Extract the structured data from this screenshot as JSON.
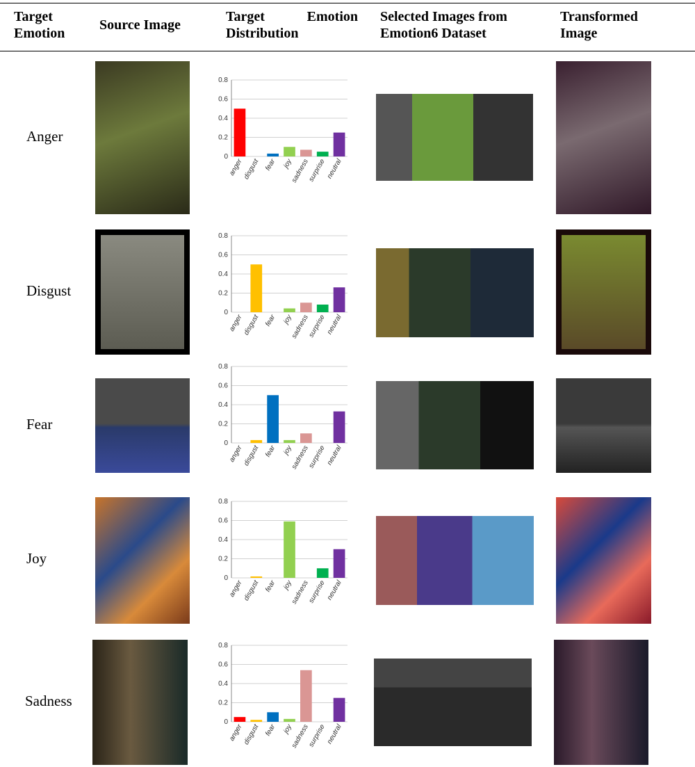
{
  "table": {
    "headers": [
      "Target Emotion",
      "Source Image",
      "Target Emotion Distribution",
      "Selected Images from Emotion6 Dataset",
      "Transformed Image"
    ],
    "rows": [
      "Anger",
      "Disgust",
      "Fear",
      "Joy",
      "Sadness"
    ]
  },
  "chart_data": [
    {
      "type": "bar",
      "categories": [
        "anger",
        "disgust",
        "fear",
        "joy",
        "sadness",
        "surprise",
        "neutral"
      ],
      "colors": [
        "#ff0000",
        "#ffc000",
        "#0070c0",
        "#92d050",
        "#da9694",
        "#00b050",
        "#7030a0"
      ],
      "values": [
        0.5,
        0,
        0.03,
        0.1,
        0.07,
        0.05,
        0.25
      ],
      "ylim": [
        0,
        0.8
      ],
      "yticks": [
        0,
        0.2,
        0.4,
        0.6,
        0.8
      ],
      "grid": true
    },
    {
      "type": "bar",
      "categories": [
        "anger",
        "disgust",
        "fear",
        "joy",
        "sadness",
        "surprise",
        "neutral"
      ],
      "colors": [
        "#ff0000",
        "#ffc000",
        "#0070c0",
        "#92d050",
        "#da9694",
        "#00b050",
        "#7030a0"
      ],
      "values": [
        0,
        0.5,
        0,
        0.04,
        0.1,
        0.08,
        0.26
      ],
      "ylim": [
        0,
        0.8
      ],
      "yticks": [
        0,
        0.2,
        0.4,
        0.6,
        0.8
      ],
      "grid": true
    },
    {
      "type": "bar",
      "categories": [
        "anger",
        "disgust",
        "fear",
        "joy",
        "sadness",
        "surprise",
        "neutral"
      ],
      "colors": [
        "#ff0000",
        "#ffc000",
        "#0070c0",
        "#92d050",
        "#da9694",
        "#00b050",
        "#7030a0"
      ],
      "values": [
        0,
        0.03,
        0.5,
        0.03,
        0.1,
        0,
        0.33
      ],
      "ylim": [
        0,
        0.8
      ],
      "yticks": [
        0,
        0.2,
        0.4,
        0.6,
        0.8
      ],
      "grid": true
    },
    {
      "type": "bar",
      "categories": [
        "anger",
        "disgust",
        "fear",
        "joy",
        "sadness",
        "surprise",
        "neutral"
      ],
      "colors": [
        "#ff0000",
        "#ffc000",
        "#0070c0",
        "#92d050",
        "#da9694",
        "#00b050",
        "#7030a0"
      ],
      "values": [
        0,
        0.015,
        0,
        0.59,
        0,
        0.1,
        0.3
      ],
      "ylim": [
        0,
        0.8
      ],
      "yticks": [
        0,
        0.2,
        0.4,
        0.6,
        0.8
      ],
      "grid": true
    },
    {
      "type": "bar",
      "categories": [
        "anger",
        "disgust",
        "fear",
        "joy",
        "sadness",
        "surprise",
        "neutral"
      ],
      "colors": [
        "#ff0000",
        "#ffc000",
        "#0070c0",
        "#92d050",
        "#da9694",
        "#00b050",
        "#7030a0"
      ],
      "values": [
        0.05,
        0.02,
        0.1,
        0.03,
        0.54,
        0,
        0.25
      ],
      "ylim": [
        0,
        0.8
      ],
      "yticks": [
        0,
        0.2,
        0.4,
        0.6,
        0.8
      ],
      "grid": true
    }
  ]
}
